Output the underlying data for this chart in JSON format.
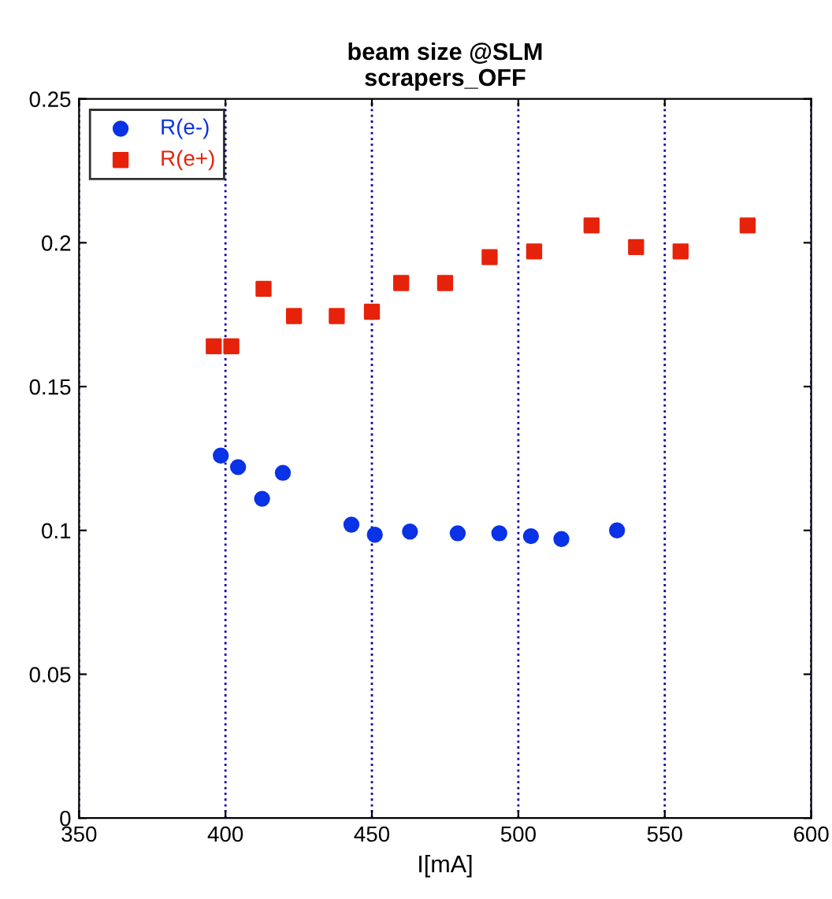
{
  "chart_data": {
    "type": "scatter",
    "title": "beam size @SLM\nscrapers_OFF",
    "xlabel": "I[mA]",
    "xlim": [
      350,
      600
    ],
    "xticks": [
      350,
      400,
      450,
      500,
      550,
      600
    ],
    "ylim": [
      0,
      0.25
    ],
    "yticks": [
      0,
      0.05,
      0.1,
      0.15,
      0.2,
      0.25
    ],
    "grid": "x",
    "legend": "top left",
    "series": [
      {
        "name": "R(e-)",
        "color": "#0a32e6",
        "marker": "circle",
        "x": [
          398.4,
          404.3,
          412.5,
          419.6,
          443,
          451,
          463,
          479.3,
          493.5,
          504.3,
          514.7,
          533.7
        ],
        "values": [
          0.126,
          0.122,
          0.111,
          0.12,
          0.102,
          0.0985,
          0.0996,
          0.099,
          0.099,
          0.098,
          0.097,
          0.1
        ]
      },
      {
        "name": "R(e+)",
        "color": "#e6230a",
        "marker": "square",
        "x": [
          396,
          402,
          413,
          423.4,
          438,
          450,
          460,
          475,
          490.2,
          505.4,
          525,
          540.2,
          555.4,
          578.3
        ],
        "values": [
          0.164,
          0.164,
          0.184,
          0.1745,
          0.1745,
          0.176,
          0.186,
          0.186,
          0.195,
          0.197,
          0.206,
          0.1985,
          0.197,
          0.206
        ]
      }
    ]
  }
}
